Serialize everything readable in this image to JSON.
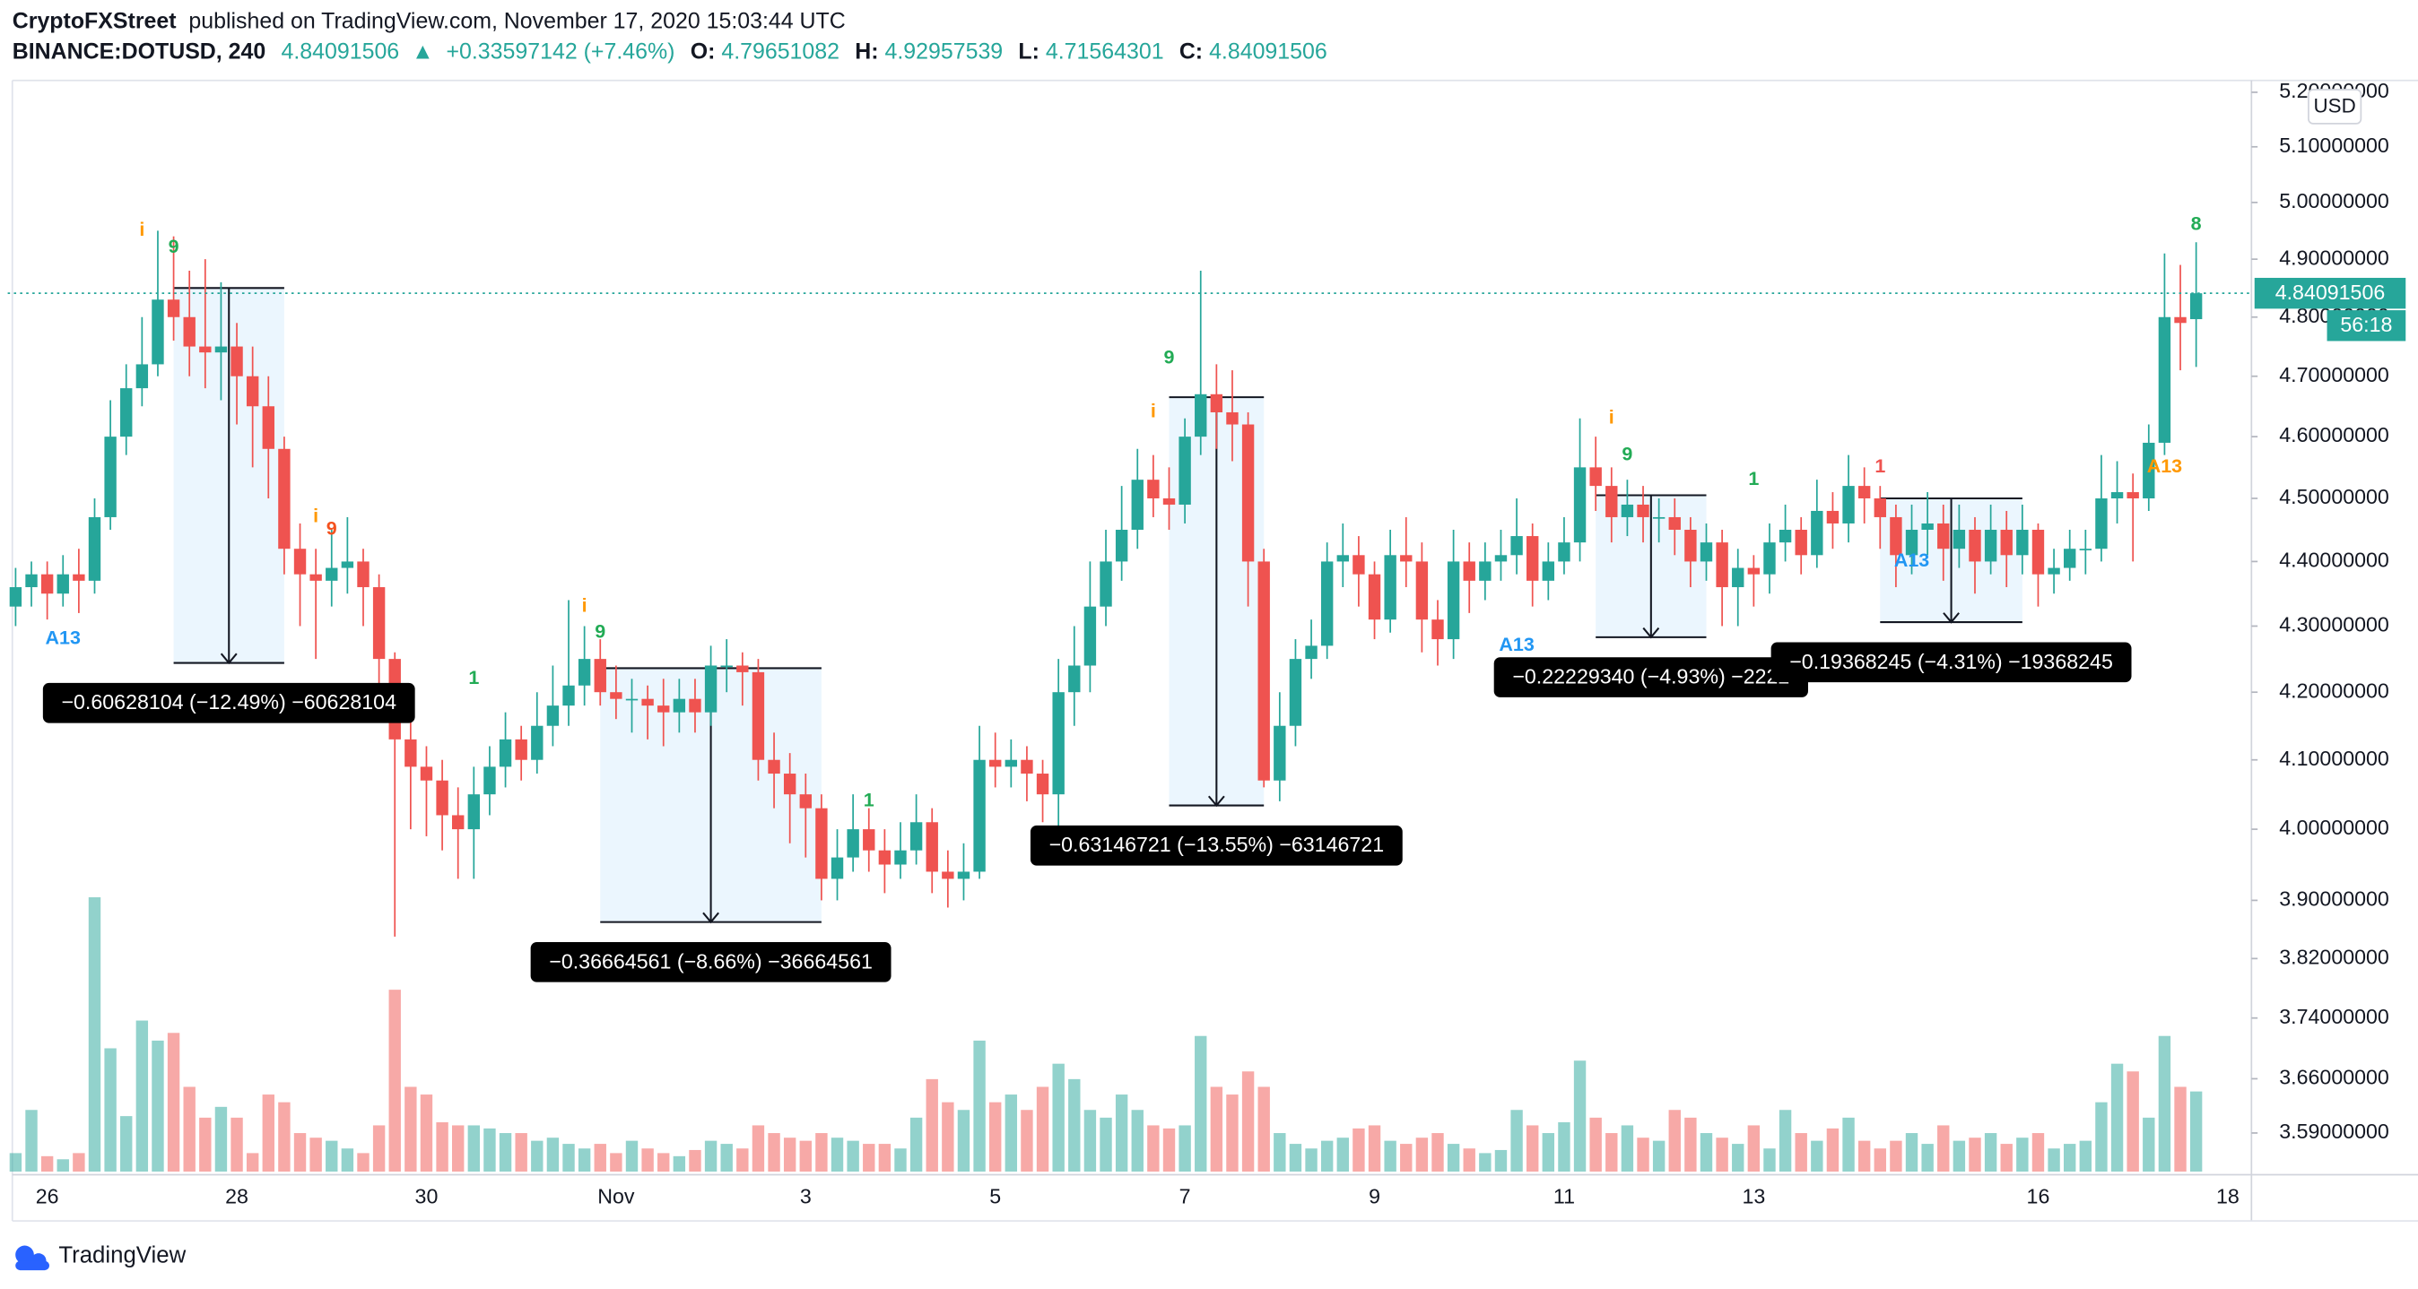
{
  "chart_data": {
    "type": "candlestick",
    "author": "CryptoFXStreet",
    "title": "published on TradingView.com, November 17, 2020 15:03:44 UTC",
    "symbol": "BINANCE:DOTUSD, 240",
    "change_arrow": "▲",
    "change": "+0.33597142 (+7.46%)",
    "ohlc_labels": [
      "O:",
      "H:",
      "L:",
      "C:"
    ],
    "currency": "USD",
    "countdown": "56:18",
    "logo": "TradingView",
    "log": true,
    "grid": false,
    "up_color": "#26a69a",
    "down_color": "#ef5350",
    "ylim": [
      3.541,
      5.222
    ],
    "yticks": [
      {
        "value": 5.2,
        "label": "5.20000000"
      },
      {
        "value": 5.1,
        "label": "5.10000000"
      },
      {
        "value": 5.0,
        "label": "5.00000000"
      },
      {
        "value": 4.9,
        "label": "4.90000000"
      },
      {
        "value": 4.8,
        "label": "4.80000000"
      },
      {
        "value": 4.7,
        "label": "4.70000000"
      },
      {
        "value": 4.6,
        "label": "4.60000000"
      },
      {
        "value": 4.5,
        "label": "4.50000000"
      },
      {
        "value": 4.4,
        "label": "4.40000000"
      },
      {
        "value": 4.3,
        "label": "4.30000000"
      },
      {
        "value": 4.2,
        "label": "4.20000000"
      },
      {
        "value": 4.1,
        "label": "4.10000000"
      },
      {
        "value": 4.0,
        "label": "4.00000000"
      },
      {
        "value": 3.9,
        "label": "3.90000000"
      },
      {
        "value": 3.82,
        "label": "3.82000000"
      },
      {
        "value": 3.74,
        "label": "3.74000000"
      },
      {
        "value": 3.66,
        "label": "3.66000000"
      },
      {
        "value": 3.59,
        "label": "3.59000000"
      }
    ],
    "vlim": [
      0,
      200
    ],
    "categories": [
      null,
      null,
      "26",
      null,
      null,
      null,
      null,
      null,
      null,
      null,
      null,
      null,
      null,
      null,
      "28",
      null,
      null,
      null,
      null,
      null,
      null,
      null,
      null,
      null,
      null,
      null,
      "30",
      null,
      null,
      null,
      null,
      null,
      null,
      null,
      null,
      null,
      null,
      null,
      "Nov",
      null,
      null,
      null,
      null,
      null,
      null,
      null,
      null,
      null,
      null,
      null,
      "3",
      null,
      null,
      null,
      null,
      null,
      null,
      null,
      null,
      null,
      null,
      null,
      "5",
      null,
      null,
      null,
      null,
      null,
      null,
      null,
      null,
      null,
      null,
      null,
      "7",
      null,
      null,
      null,
      null,
      null,
      null,
      null,
      null,
      null,
      null,
      null,
      "9",
      null,
      null,
      null,
      null,
      null,
      null,
      null,
      null,
      null,
      null,
      null,
      "11",
      null,
      null,
      null,
      null,
      null,
      null,
      null,
      null,
      null,
      null,
      null,
      "13",
      null,
      null,
      null,
      null,
      null,
      null,
      null,
      null,
      null,
      null,
      null,
      null,
      null,
      null,
      null,
      null,
      null,
      "16",
      null,
      null,
      null,
      null,
      null,
      null,
      null,
      null,
      null,
      null,
      null,
      "18",
      null
    ],
    "ohlc": [
      [
        4.33,
        4.39,
        4.3,
        4.36
      ],
      [
        4.36,
        4.4,
        4.33,
        4.38
      ],
      [
        4.38,
        4.4,
        4.31,
        4.35
      ],
      [
        4.35,
        4.41,
        4.33,
        4.38
      ],
      [
        4.38,
        4.42,
        4.32,
        4.37
      ],
      [
        4.37,
        4.5,
        4.35,
        4.47
      ],
      [
        4.47,
        4.66,
        4.45,
        4.6
      ],
      [
        4.6,
        4.72,
        4.57,
        4.68
      ],
      [
        4.68,
        4.8,
        4.65,
        4.72
      ],
      [
        4.72,
        4.95,
        4.7,
        4.83
      ],
      [
        4.83,
        4.94,
        4.76,
        4.8
      ],
      [
        4.8,
        4.88,
        4.7,
        4.75
      ],
      [
        4.75,
        4.9,
        4.68,
        4.74
      ],
      [
        4.74,
        4.86,
        4.66,
        4.75
      ],
      [
        4.75,
        4.79,
        4.62,
        4.7
      ],
      [
        4.7,
        4.75,
        4.55,
        4.65
      ],
      [
        4.65,
        4.7,
        4.5,
        4.58
      ],
      [
        4.58,
        4.6,
        4.38,
        4.42
      ],
      [
        4.42,
        4.46,
        4.3,
        4.38
      ],
      [
        4.38,
        4.42,
        4.25,
        4.37
      ],
      [
        4.37,
        4.45,
        4.33,
        4.39
      ],
      [
        4.39,
        4.47,
        4.35,
        4.4
      ],
      [
        4.4,
        4.42,
        4.3,
        4.36
      ],
      [
        4.36,
        4.38,
        4.2,
        4.25
      ],
      [
        4.25,
        4.26,
        3.85,
        4.13
      ],
      [
        4.13,
        4.18,
        4.0,
        4.09
      ],
      [
        4.09,
        4.12,
        3.99,
        4.07
      ],
      [
        4.07,
        4.1,
        3.97,
        4.02
      ],
      [
        4.02,
        4.06,
        3.93,
        4.0
      ],
      [
        4.0,
        4.09,
        3.93,
        4.05
      ],
      [
        4.05,
        4.12,
        4.02,
        4.09
      ],
      [
        4.09,
        4.17,
        4.06,
        4.13
      ],
      [
        4.13,
        4.15,
        4.07,
        4.1
      ],
      [
        4.1,
        4.2,
        4.08,
        4.15
      ],
      [
        4.15,
        4.24,
        4.12,
        4.18
      ],
      [
        4.18,
        4.34,
        4.15,
        4.21
      ],
      [
        4.21,
        4.3,
        4.18,
        4.25
      ],
      [
        4.25,
        4.28,
        4.18,
        4.2
      ],
      [
        4.2,
        4.24,
        4.16,
        4.19
      ],
      [
        4.19,
        4.22,
        4.14,
        4.19
      ],
      [
        4.19,
        4.21,
        4.13,
        4.18
      ],
      [
        4.18,
        4.22,
        4.12,
        4.17
      ],
      [
        4.17,
        4.22,
        4.14,
        4.19
      ],
      [
        4.19,
        4.22,
        4.14,
        4.17
      ],
      [
        4.17,
        4.27,
        4.15,
        4.24
      ],
      [
        4.24,
        4.28,
        4.2,
        4.24
      ],
      [
        4.24,
        4.26,
        4.18,
        4.23
      ],
      [
        4.23,
        4.25,
        4.07,
        4.1
      ],
      [
        4.1,
        4.14,
        4.03,
        4.08
      ],
      [
        4.08,
        4.11,
        3.98,
        4.05
      ],
      [
        4.05,
        4.08,
        3.96,
        4.03
      ],
      [
        4.03,
        4.05,
        3.9,
        3.93
      ],
      [
        3.93,
        4.0,
        3.9,
        3.96
      ],
      [
        3.96,
        4.05,
        3.94,
        4.0
      ],
      [
        4.0,
        4.03,
        3.94,
        3.97
      ],
      [
        3.97,
        4.0,
        3.91,
        3.95
      ],
      [
        3.95,
        4.01,
        3.93,
        3.97
      ],
      [
        3.97,
        4.05,
        3.95,
        4.01
      ],
      [
        4.01,
        4.03,
        3.91,
        3.94
      ],
      [
        3.94,
        3.97,
        3.89,
        3.93
      ],
      [
        3.93,
        3.98,
        3.9,
        3.94
      ],
      [
        3.94,
        4.15,
        3.93,
        4.1
      ],
      [
        4.1,
        4.14,
        4.06,
        4.09
      ],
      [
        4.09,
        4.13,
        4.06,
        4.1
      ],
      [
        4.1,
        4.12,
        4.04,
        4.08
      ],
      [
        4.08,
        4.1,
        4.01,
        4.05
      ],
      [
        4.05,
        4.25,
        3.99,
        4.2
      ],
      [
        4.2,
        4.3,
        4.15,
        4.24
      ],
      [
        4.24,
        4.4,
        4.2,
        4.33
      ],
      [
        4.33,
        4.45,
        4.3,
        4.4
      ],
      [
        4.4,
        4.52,
        4.37,
        4.45
      ],
      [
        4.45,
        4.58,
        4.42,
        4.53
      ],
      [
        4.53,
        4.57,
        4.47,
        4.5
      ],
      [
        4.5,
        4.55,
        4.45,
        4.49
      ],
      [
        4.49,
        4.63,
        4.46,
        4.6
      ],
      [
        4.6,
        4.88,
        4.57,
        4.67
      ],
      [
        4.67,
        4.72,
        4.58,
        4.64
      ],
      [
        4.64,
        4.71,
        4.56,
        4.62
      ],
      [
        4.62,
        4.64,
        4.33,
        4.4
      ],
      [
        4.4,
        4.42,
        4.06,
        4.07
      ],
      [
        4.07,
        4.2,
        4.04,
        4.15
      ],
      [
        4.15,
        4.28,
        4.12,
        4.25
      ],
      [
        4.25,
        4.31,
        4.22,
        4.27
      ],
      [
        4.27,
        4.43,
        4.25,
        4.4
      ],
      [
        4.4,
        4.46,
        4.36,
        4.41
      ],
      [
        4.41,
        4.44,
        4.33,
        4.38
      ],
      [
        4.38,
        4.4,
        4.28,
        4.31
      ],
      [
        4.31,
        4.45,
        4.29,
        4.41
      ],
      [
        4.41,
        4.47,
        4.36,
        4.4
      ],
      [
        4.4,
        4.43,
        4.26,
        4.31
      ],
      [
        4.31,
        4.34,
        4.24,
        4.28
      ],
      [
        4.28,
        4.45,
        4.25,
        4.4
      ],
      [
        4.4,
        4.43,
        4.32,
        4.37
      ],
      [
        4.37,
        4.43,
        4.34,
        4.4
      ],
      [
        4.4,
        4.45,
        4.37,
        4.41
      ],
      [
        4.41,
        4.5,
        4.38,
        4.44
      ],
      [
        4.44,
        4.46,
        4.33,
        4.37
      ],
      [
        4.37,
        4.43,
        4.34,
        4.4
      ],
      [
        4.4,
        4.47,
        4.38,
        4.43
      ],
      [
        4.43,
        4.63,
        4.4,
        4.55
      ],
      [
        4.55,
        4.6,
        4.48,
        4.52
      ],
      [
        4.52,
        4.55,
        4.43,
        4.47
      ],
      [
        4.47,
        4.53,
        4.44,
        4.49
      ],
      [
        4.49,
        4.52,
        4.43,
        4.47
      ],
      [
        4.47,
        4.5,
        4.43,
        4.47
      ],
      [
        4.47,
        4.5,
        4.41,
        4.45
      ],
      [
        4.45,
        4.47,
        4.36,
        4.4
      ],
      [
        4.4,
        4.46,
        4.37,
        4.43
      ],
      [
        4.43,
        4.45,
        4.3,
        4.36
      ],
      [
        4.36,
        4.42,
        4.3,
        4.39
      ],
      [
        4.39,
        4.41,
        4.33,
        4.38
      ],
      [
        4.38,
        4.46,
        4.35,
        4.43
      ],
      [
        4.43,
        4.49,
        4.4,
        4.45
      ],
      [
        4.45,
        4.47,
        4.38,
        4.41
      ],
      [
        4.41,
        4.53,
        4.39,
        4.48
      ],
      [
        4.48,
        4.51,
        4.42,
        4.46
      ],
      [
        4.46,
        4.57,
        4.43,
        4.52
      ],
      [
        4.52,
        4.55,
        4.46,
        4.5
      ],
      [
        4.5,
        4.52,
        4.42,
        4.47
      ],
      [
        4.47,
        4.49,
        4.36,
        4.41
      ],
      [
        4.41,
        4.49,
        4.38,
        4.45
      ],
      [
        4.45,
        4.51,
        4.41,
        4.46
      ],
      [
        4.46,
        4.49,
        4.37,
        4.42
      ],
      [
        4.42,
        4.49,
        4.39,
        4.45
      ],
      [
        4.45,
        4.47,
        4.35,
        4.4
      ],
      [
        4.4,
        4.49,
        4.38,
        4.45
      ],
      [
        4.45,
        4.48,
        4.36,
        4.41
      ],
      [
        4.41,
        4.49,
        4.38,
        4.45
      ],
      [
        4.45,
        4.46,
        4.33,
        4.38
      ],
      [
        4.38,
        4.42,
        4.35,
        4.39
      ],
      [
        4.39,
        4.45,
        4.37,
        4.42
      ],
      [
        4.42,
        4.45,
        4.38,
        4.42
      ],
      [
        4.42,
        4.57,
        4.4,
        4.5
      ],
      [
        4.5,
        4.56,
        4.46,
        4.51
      ],
      [
        4.51,
        4.54,
        4.4,
        4.5
      ],
      [
        4.5,
        4.62,
        4.48,
        4.59
      ],
      [
        4.59,
        4.91,
        4.57,
        4.8
      ],
      [
        4.8,
        4.89,
        4.71,
        4.79
      ],
      [
        4.79651082,
        4.92957539,
        4.71564301,
        4.84091506
      ],
      null,
      null,
      null
    ],
    "volume": [
      12,
      40,
      10,
      8,
      12,
      178,
      80,
      36,
      98,
      85,
      90,
      55,
      35,
      42,
      35,
      12,
      50,
      45,
      25,
      22,
      20,
      15,
      12,
      30,
      118,
      55,
      50,
      32,
      30,
      30,
      28,
      25,
      25,
      20,
      22,
      18,
      15,
      18,
      12,
      20,
      15,
      12,
      10,
      14,
      20,
      18,
      15,
      30,
      25,
      22,
      20,
      25,
      22,
      20,
      18,
      18,
      15,
      35,
      60,
      45,
      40,
      85,
      45,
      50,
      40,
      55,
      70,
      60,
      40,
      35,
      50,
      40,
      30,
      28,
      30,
      88,
      55,
      50,
      65,
      55,
      25,
      18,
      15,
      20,
      22,
      28,
      30,
      20,
      18,
      22,
      25,
      18,
      15,
      12,
      14,
      40,
      30,
      25,
      32,
      72,
      35,
      25,
      30,
      22,
      20,
      40,
      35,
      25,
      22,
      18,
      30,
      15,
      40,
      25,
      20,
      28,
      35,
      20,
      15,
      20,
      25,
      18,
      30,
      20,
      22,
      25,
      18,
      22,
      25,
      15,
      18,
      20,
      45,
      70,
      65,
      35,
      88,
      55,
      52,
      null,
      null,
      null
    ],
    "markers": [
      {
        "text": "i",
        "color": "#ff9800",
        "index": 8,
        "price": 4.95
      },
      {
        "text": "9",
        "color": "#22ab55",
        "index": 10,
        "price": 4.92
      },
      {
        "text": "A13",
        "color": "#2196f3",
        "index": 3,
        "price": 4.28
      },
      {
        "text": "i",
        "color": "#ff9800",
        "index": 19,
        "price": 4.47
      },
      {
        "text": "9",
        "color": "#f4511e",
        "index": 20,
        "price": 4.45
      },
      {
        "text": "1",
        "color": "#22ab55",
        "index": 29,
        "price": 4.22
      },
      {
        "text": "i",
        "color": "#ff9800",
        "index": 36,
        "price": 4.33
      },
      {
        "text": "9",
        "color": "#22ab55",
        "index": 37,
        "price": 4.29
      },
      {
        "text": "1",
        "color": "#22ab55",
        "index": 54,
        "price": 4.04
      },
      {
        "text": "i",
        "color": "#ff9800",
        "index": 72,
        "price": 4.64
      },
      {
        "text": "9",
        "color": "#22ab55",
        "index": 73,
        "price": 4.73
      },
      {
        "text": "A13",
        "color": "#2196f3",
        "index": 95,
        "price": 4.27
      },
      {
        "text": "i",
        "color": "#ff9800",
        "index": 101,
        "price": 4.63
      },
      {
        "text": "9",
        "color": "#22ab55",
        "index": 102,
        "price": 4.57
      },
      {
        "text": "1",
        "color": "#22ab55",
        "index": 110,
        "price": 4.53
      },
      {
        "text": "1",
        "color": "#ef5350",
        "index": 118,
        "price": 4.55
      },
      {
        "text": "A13",
        "color": "#2196f3",
        "index": 120,
        "price": 4.4
      },
      {
        "text": "A13",
        "color": "#ff9800",
        "index": 136,
        "price": 4.55
      },
      {
        "text": "8",
        "color": "#22ab55",
        "index": 138,
        "price": 4.96
      }
    ],
    "measures": [
      {
        "label": "−0.60628104 (−12.49%) −60628104",
        "start": 10,
        "end": 17,
        "from": 4.85,
        "to": 4.244
      },
      {
        "label": "−0.36664561 (−8.66%) −36664561",
        "start": 37,
        "end": 51,
        "from": 4.236,
        "to": 3.87
      },
      {
        "label": "−0.63146721 (−13.55%) −63146721",
        "start": 73,
        "end": 79,
        "from": 4.665,
        "to": 4.034
      },
      {
        "label": "−0.22229340 (−4.93%) −2222",
        "start": 100,
        "end": 107,
        "from": 4.505,
        "to": 4.283
      },
      {
        "label": "−0.19368245 (−4.31%) −19368245",
        "start": 118,
        "end": 127,
        "from": 4.5,
        "to": 4.306
      }
    ]
  }
}
